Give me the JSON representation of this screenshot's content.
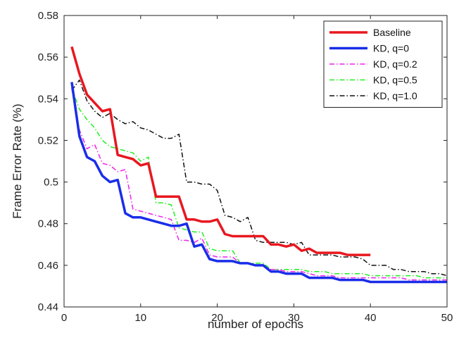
{
  "chart_data": {
    "type": "line",
    "title": "",
    "xlabel": "number of epochs",
    "ylabel": "Frame Error Rate (%)",
    "xlim": [
      0,
      50
    ],
    "ylim": [
      0.44,
      0.58
    ],
    "x_ticks": [
      0,
      10,
      20,
      30,
      40,
      50
    ],
    "y_ticks": [
      0.44,
      0.46,
      0.48,
      0.5,
      0.52,
      0.54,
      0.56,
      0.58
    ],
    "x_tick_labels": [
      "0",
      "10",
      "20",
      "30",
      "40",
      "50"
    ],
    "y_tick_labels": [
      "0.44",
      "0.46",
      "0.48",
      "0.5",
      "0.52",
      "0.54",
      "0.56",
      "0.58"
    ],
    "grid": false,
    "legend_position": "top-right",
    "series": [
      {
        "name": "Baseline",
        "color": "#e8171f",
        "style": "solid",
        "width": 3.5,
        "x": [
          1,
          2,
          3,
          4,
          5,
          6,
          7,
          8,
          9,
          10,
          11,
          12,
          13,
          14,
          15,
          16,
          17,
          18,
          19,
          20,
          21,
          22,
          23,
          24,
          25,
          26,
          27,
          28,
          29,
          30,
          31,
          32,
          33,
          34,
          35,
          36,
          37,
          38,
          39,
          40
        ],
        "y": [
          0.565,
          0.552,
          0.542,
          0.538,
          0.534,
          0.535,
          0.513,
          0.512,
          0.511,
          0.508,
          0.509,
          0.493,
          0.493,
          0.493,
          0.493,
          0.482,
          0.482,
          0.481,
          0.481,
          0.482,
          0.475,
          0.474,
          0.474,
          0.474,
          0.474,
          0.474,
          0.47,
          0.47,
          0.469,
          0.47,
          0.467,
          0.468,
          0.466,
          0.466,
          0.466,
          0.466,
          0.465,
          0.465,
          0.465,
          0.465
        ]
      },
      {
        "name": "KD, q=0",
        "color": "#1a2de8",
        "style": "solid",
        "width": 3.5,
        "x": [
          1,
          2,
          3,
          4,
          5,
          6,
          7,
          8,
          9,
          10,
          11,
          12,
          13,
          14,
          15,
          16,
          17,
          18,
          19,
          20,
          21,
          22,
          23,
          24,
          25,
          26,
          27,
          28,
          29,
          30,
          31,
          32,
          33,
          34,
          35,
          36,
          37,
          38,
          39,
          40,
          41,
          42,
          43,
          44,
          45,
          46,
          47,
          48,
          49,
          50
        ],
        "y": [
          0.548,
          0.522,
          0.512,
          0.51,
          0.503,
          0.5,
          0.501,
          0.485,
          0.483,
          0.483,
          0.482,
          0.481,
          0.48,
          0.479,
          0.479,
          0.48,
          0.469,
          0.47,
          0.463,
          0.462,
          0.462,
          0.462,
          0.461,
          0.461,
          0.46,
          0.46,
          0.457,
          0.457,
          0.456,
          0.456,
          0.456,
          0.454,
          0.454,
          0.454,
          0.454,
          0.453,
          0.453,
          0.453,
          0.453,
          0.452,
          0.452,
          0.452,
          0.452,
          0.452,
          0.452,
          0.452,
          0.452,
          0.452,
          0.452,
          0.452
        ]
      },
      {
        "name": "KD, q=0.2",
        "color": "#ee22ee",
        "style": "dashdot",
        "width": 1.5,
        "x": [
          1,
          2,
          3,
          4,
          5,
          6,
          7,
          8,
          9,
          10,
          11,
          12,
          13,
          14,
          15,
          16,
          17,
          18,
          19,
          20,
          21,
          22,
          23,
          24,
          25,
          26,
          27,
          28,
          29,
          30,
          31,
          32,
          33,
          34,
          35,
          36,
          37,
          38,
          39,
          40,
          41,
          42,
          43,
          44,
          45,
          46,
          47,
          48,
          49,
          50
        ],
        "y": [
          0.545,
          0.525,
          0.516,
          0.518,
          0.509,
          0.508,
          0.505,
          0.506,
          0.487,
          0.486,
          0.485,
          0.484,
          0.483,
          0.482,
          0.472,
          0.472,
          0.471,
          0.473,
          0.465,
          0.464,
          0.464,
          0.464,
          0.461,
          0.461,
          0.46,
          0.46,
          0.458,
          0.458,
          0.457,
          0.457,
          0.457,
          0.456,
          0.455,
          0.455,
          0.455,
          0.454,
          0.454,
          0.454,
          0.454,
          0.454,
          0.454,
          0.454,
          0.454,
          0.454,
          0.453,
          0.453,
          0.453,
          0.453,
          0.453,
          0.453
        ]
      },
      {
        "name": "KD, q=0.5",
        "color": "#22ee22",
        "style": "dashdot",
        "width": 1.5,
        "x": [
          1,
          2,
          3,
          4,
          5,
          6,
          7,
          8,
          9,
          10,
          11,
          12,
          13,
          14,
          15,
          16,
          17,
          18,
          19,
          20,
          21,
          22,
          23,
          24,
          25,
          26,
          27,
          28,
          29,
          30,
          31,
          32,
          33,
          34,
          35,
          36,
          37,
          38,
          39,
          40,
          41,
          42,
          43,
          44,
          45,
          46,
          47,
          48,
          49,
          50
        ],
        "y": [
          0.545,
          0.535,
          0.53,
          0.526,
          0.52,
          0.517,
          0.516,
          0.515,
          0.514,
          0.51,
          0.512,
          0.49,
          0.49,
          0.489,
          0.478,
          0.477,
          0.476,
          0.476,
          0.468,
          0.467,
          0.467,
          0.467,
          0.461,
          0.461,
          0.461,
          0.461,
          0.458,
          0.458,
          0.458,
          0.458,
          0.458,
          0.457,
          0.457,
          0.457,
          0.456,
          0.456,
          0.456,
          0.456,
          0.456,
          0.455,
          0.455,
          0.455,
          0.455,
          0.455,
          0.455,
          0.455,
          0.454,
          0.454,
          0.454,
          0.454
        ]
      },
      {
        "name": "KD, q=1.0",
        "color": "#111111",
        "style": "dashdot",
        "width": 1.5,
        "x": [
          1,
          2,
          3,
          4,
          5,
          6,
          7,
          8,
          9,
          10,
          11,
          12,
          13,
          14,
          15,
          16,
          17,
          18,
          19,
          20,
          21,
          22,
          23,
          24,
          25,
          26,
          27,
          28,
          29,
          30,
          31,
          32,
          33,
          34,
          35,
          36,
          37,
          38,
          39,
          40,
          41,
          42,
          43,
          44,
          45,
          46,
          47,
          48,
          49,
          50
        ],
        "y": [
          0.544,
          0.549,
          0.539,
          0.534,
          0.531,
          0.533,
          0.53,
          0.528,
          0.529,
          0.526,
          0.525,
          0.523,
          0.521,
          0.521,
          0.523,
          0.5,
          0.5,
          0.499,
          0.499,
          0.496,
          0.484,
          0.483,
          0.481,
          0.483,
          0.472,
          0.471,
          0.471,
          0.471,
          0.471,
          0.47,
          0.471,
          0.465,
          0.465,
          0.465,
          0.465,
          0.464,
          0.464,
          0.464,
          0.463,
          0.46,
          0.46,
          0.46,
          0.458,
          0.458,
          0.457,
          0.457,
          0.457,
          0.456,
          0.456,
          0.455
        ]
      }
    ]
  }
}
